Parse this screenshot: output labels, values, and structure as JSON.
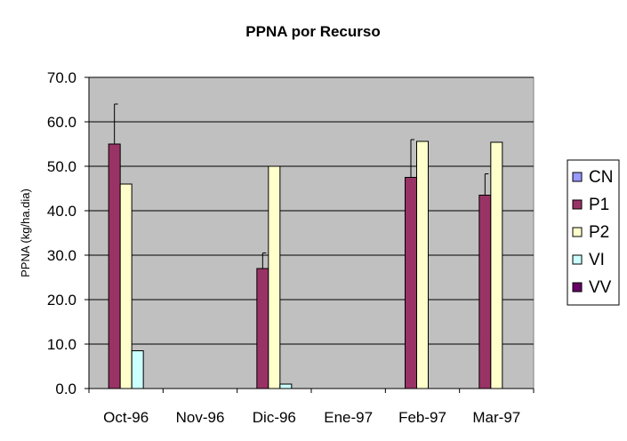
{
  "chart_data": {
    "type": "bar",
    "title": "PPNA por Recurso",
    "xlabel": "",
    "ylabel": "PPNA (kg/ha.dia)",
    "ylim": [
      0,
      70
    ],
    "ytick_step": 10,
    "ytick_labels": [
      "0.0",
      "10.0",
      "20.0",
      "30.0",
      "40.0",
      "50.0",
      "60.0",
      "70.0"
    ],
    "categories": [
      "Oct-96",
      "Nov-96",
      "Dic-96",
      "Ene-97",
      "Feb-97",
      "Mar-97"
    ],
    "grid": true,
    "plot_background": "#c0c0c0",
    "legend_position": "right",
    "series": [
      {
        "name": "CN",
        "color": "#9999ff",
        "values": [
          null,
          null,
          null,
          null,
          null,
          null
        ],
        "errors": [
          null,
          null,
          null,
          null,
          null,
          null
        ]
      },
      {
        "name": "P1",
        "color": "#993366",
        "values": [
          55.0,
          null,
          27.0,
          null,
          47.5,
          43.5
        ],
        "errors": [
          9.0,
          null,
          3.5,
          null,
          8.5,
          4.8
        ]
      },
      {
        "name": "P2",
        "color": "#ffffcc",
        "values": [
          46.0,
          null,
          50.0,
          null,
          55.6,
          55.4
        ],
        "errors": [
          null,
          null,
          null,
          null,
          null,
          null
        ]
      },
      {
        "name": "VI",
        "color": "#ccffff",
        "values": [
          8.5,
          null,
          1.0,
          null,
          null,
          null
        ],
        "errors": [
          null,
          null,
          null,
          null,
          null,
          null
        ]
      },
      {
        "name": "VV",
        "color": "#660066",
        "values": [
          null,
          null,
          null,
          null,
          null,
          null
        ],
        "errors": [
          null,
          null,
          null,
          null,
          null,
          null
        ]
      }
    ]
  }
}
